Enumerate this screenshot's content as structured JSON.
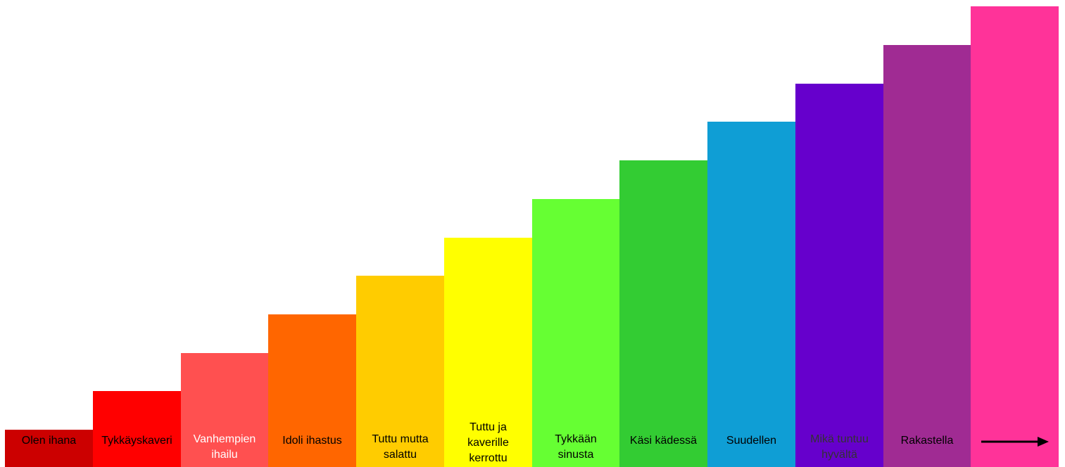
{
  "diagram": {
    "steps": [
      {
        "label": "Olen ihana",
        "level": 1,
        "color": "#cc0000",
        "text_color": "#000000",
        "label_lines": 1
      },
      {
        "label": "Tykkäyskaveri",
        "level": 2,
        "color": "#ff0000",
        "text_color": "#000000",
        "label_lines": 1
      },
      {
        "label": "Vanhempien\nihailu",
        "level": 3,
        "color": "#ff5050",
        "text_color": "#ffffff",
        "label_lines": 2
      },
      {
        "label": "Idoli ihastus",
        "level": 4,
        "color": "#ff6600",
        "text_color": "#000000",
        "label_lines": 1
      },
      {
        "label": "Tuttu mutta\nsalattu",
        "level": 5,
        "color": "#ffcc00",
        "text_color": "#000000",
        "label_lines": 2
      },
      {
        "label": "Tuttu ja\nkaverille\nkerrottu",
        "level": 6,
        "color": "#ffff00",
        "text_color": "#000000",
        "label_lines": 3
      },
      {
        "label": "Tykkään\nsinusta",
        "level": 7,
        "color": "#66ff33",
        "text_color": "#000000",
        "label_lines": 2
      },
      {
        "label": "Käsi kädessä",
        "level": 8,
        "color": "#33cc33",
        "text_color": "#000000",
        "label_lines": 1
      },
      {
        "label": "Suudellen",
        "level": 9,
        "color": "#0f9ed5",
        "text_color": "#000000",
        "label_lines": 1
      },
      {
        "label": "Mikä tuntuu\nhyvältä",
        "level": 10,
        "color": "#6600cc",
        "text_color": "#333333",
        "label_lines": 2
      },
      {
        "label": "Rakastella",
        "level": 11,
        "color": "#a02b93",
        "text_color": "#000000",
        "label_lines": 1
      },
      {
        "label": "",
        "level": 12,
        "color": "#ff3399",
        "text_color": "#000000",
        "label_lines": 0,
        "icon": "arrow-right-icon"
      }
    ]
  }
}
